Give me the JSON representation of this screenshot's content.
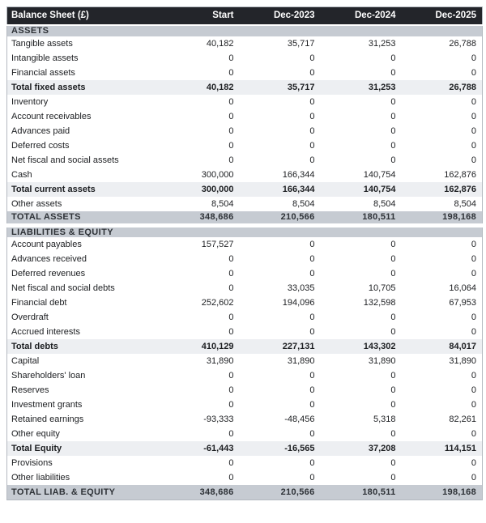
{
  "colors": {
    "header_bg": "#23252a",
    "header_text": "#ffffff",
    "section_bg": "#c6cbd2",
    "subtotal_bg": "#edeff2",
    "grand_total_bg": "#c6cbd2",
    "row_bg": "#ffffff",
    "border": "#b4b9c0"
  },
  "chart_data": {
    "type": "table",
    "title": "Balance Sheet (£)",
    "columns": [
      "Start",
      "Dec-2023",
      "Dec-2024",
      "Dec-2025"
    ],
    "sections": [
      {
        "title": "ASSETS",
        "gap_before": false,
        "rows": [
          {
            "label": "Tangible assets",
            "style": "data",
            "values": [
              "40,182",
              "35,717",
              "31,253",
              "26,788"
            ]
          },
          {
            "label": "Intangible assets",
            "style": "data",
            "values": [
              "0",
              "0",
              "0",
              "0"
            ]
          },
          {
            "label": "Financial assets",
            "style": "data",
            "values": [
              "0",
              "0",
              "0",
              "0"
            ]
          },
          {
            "label": "Total fixed assets",
            "style": "subtotal",
            "values": [
              "40,182",
              "35,717",
              "31,253",
              "26,788"
            ]
          },
          {
            "label": "Inventory",
            "style": "data",
            "values": [
              "0",
              "0",
              "0",
              "0"
            ]
          },
          {
            "label": "Account receivables",
            "style": "data",
            "values": [
              "0",
              "0",
              "0",
              "0"
            ]
          },
          {
            "label": "Advances paid",
            "style": "data",
            "values": [
              "0",
              "0",
              "0",
              "0"
            ]
          },
          {
            "label": "Deferred costs",
            "style": "data",
            "values": [
              "0",
              "0",
              "0",
              "0"
            ]
          },
          {
            "label": "Net fiscal and social assets",
            "style": "data",
            "values": [
              "0",
              "0",
              "0",
              "0"
            ]
          },
          {
            "label": "Cash",
            "style": "data",
            "values": [
              "300,000",
              "166,344",
              "140,754",
              "162,876"
            ]
          },
          {
            "label": "Total current assets",
            "style": "subtotal",
            "values": [
              "300,000",
              "166,344",
              "140,754",
              "162,876"
            ]
          },
          {
            "label": "Other assets",
            "style": "data",
            "values": [
              "8,504",
              "8,504",
              "8,504",
              "8,504"
            ]
          },
          {
            "label": "TOTAL ASSETS",
            "style": "grand",
            "values": [
              "348,686",
              "210,566",
              "180,511",
              "198,168"
            ]
          }
        ]
      },
      {
        "title": "LIABILITIES & EQUITY",
        "gap_before": true,
        "rows": [
          {
            "label": "Account payables",
            "style": "data",
            "values": [
              "157,527",
              "0",
              "0",
              "0"
            ]
          },
          {
            "label": "Advances received",
            "style": "data",
            "values": [
              "0",
              "0",
              "0",
              "0"
            ]
          },
          {
            "label": "Deferred revenues",
            "style": "data",
            "values": [
              "0",
              "0",
              "0",
              "0"
            ]
          },
          {
            "label": "Net fiscal and social debts",
            "style": "data",
            "values": [
              "0",
              "33,035",
              "10,705",
              "16,064"
            ]
          },
          {
            "label": "Financial debt",
            "style": "data",
            "values": [
              "252,602",
              "194,096",
              "132,598",
              "67,953"
            ]
          },
          {
            "label": "Overdraft",
            "style": "data",
            "values": [
              "0",
              "0",
              "0",
              "0"
            ]
          },
          {
            "label": "Accrued interests",
            "style": "data",
            "values": [
              "0",
              "0",
              "0",
              "0"
            ]
          },
          {
            "label": "Total debts",
            "style": "subtotal",
            "values": [
              "410,129",
              "227,131",
              "143,302",
              "84,017"
            ]
          },
          {
            "label": "Capital",
            "style": "data",
            "values": [
              "31,890",
              "31,890",
              "31,890",
              "31,890"
            ]
          },
          {
            "label": "Shareholders' loan",
            "style": "data",
            "values": [
              "0",
              "0",
              "0",
              "0"
            ]
          },
          {
            "label": "Reserves",
            "style": "data",
            "values": [
              "0",
              "0",
              "0",
              "0"
            ]
          },
          {
            "label": "Investment grants",
            "style": "data",
            "values": [
              "0",
              "0",
              "0",
              "0"
            ]
          },
          {
            "label": "Retained earnings",
            "style": "data",
            "values": [
              "-93,333",
              "-48,456",
              "5,318",
              "82,261"
            ]
          },
          {
            "label": "Other equity",
            "style": "data",
            "values": [
              "0",
              "0",
              "0",
              "0"
            ]
          },
          {
            "label": "Total Equity",
            "style": "subtotal",
            "values": [
              "-61,443",
              "-16,565",
              "37,208",
              "114,151"
            ]
          },
          {
            "label": "Provisions",
            "style": "data",
            "values": [
              "0",
              "0",
              "0",
              "0"
            ]
          },
          {
            "label": "Other liabilities",
            "style": "data",
            "values": [
              "0",
              "0",
              "0",
              "0"
            ]
          },
          {
            "label": "TOTAL LIAB. & EQUITY",
            "style": "grand",
            "values": [
              "348,686",
              "210,566",
              "180,511",
              "198,168"
            ]
          }
        ]
      }
    ]
  }
}
